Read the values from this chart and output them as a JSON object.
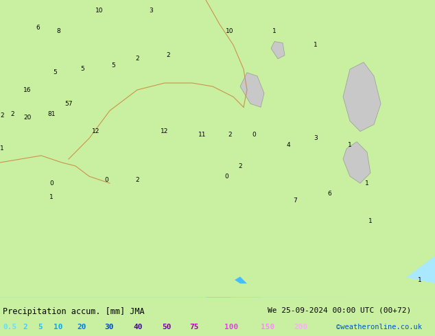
{
  "title_left": "Precipitation accum. [mm] JMA",
  "title_right": "We 25-09-2024 00:00 UTC (00+72)",
  "credit": "©weatheronline.co.uk",
  "legend_values": [
    "0.5",
    "2",
    "5",
    "10",
    "20",
    "30",
    "40",
    "50",
    "75",
    "100",
    "150",
    "200"
  ],
  "land_color": "#c8f0a0",
  "sea_color": "#d0ecff",
  "fill_colors": [
    "#aae8ff",
    "#77d4ff",
    "#44bcff",
    "#1199ee",
    "#0066dd",
    "#0044bb",
    "#002288",
    "#440088",
    "#7700aa",
    "#aa00bb",
    "#cc44cc"
  ],
  "legend_text_colors": [
    "#66ddff",
    "#44ccff",
    "#22bbff",
    "#00aaff",
    "#0077ee",
    "#0044cc",
    "#4400aa",
    "#770099",
    "#aa00aa",
    "#dd44dd",
    "#ff88ff",
    "#ffaaff"
  ],
  "contour_labels": [
    [
      18,
      265,
      "2"
    ],
    [
      3,
      263,
      "2"
    ],
    [
      3,
      215,
      "1"
    ],
    [
      40,
      260,
      "20"
    ],
    [
      40,
      300,
      "16"
    ],
    [
      75,
      265,
      "81"
    ],
    [
      100,
      280,
      "57"
    ],
    [
      140,
      240,
      "12"
    ],
    [
      155,
      170,
      "0"
    ],
    [
      200,
      170,
      "2"
    ],
    [
      240,
      240,
      "12"
    ],
    [
      295,
      235,
      "11"
    ],
    [
      80,
      325,
      "5"
    ],
    [
      120,
      330,
      "5"
    ],
    [
      165,
      335,
      "5"
    ],
    [
      200,
      345,
      "2"
    ],
    [
      245,
      350,
      "2"
    ],
    [
      75,
      165,
      "0"
    ],
    [
      75,
      145,
      "1"
    ],
    [
      330,
      175,
      "0"
    ],
    [
      350,
      190,
      "2"
    ],
    [
      335,
      235,
      "2"
    ],
    [
      370,
      235,
      "0"
    ],
    [
      420,
      220,
      "4"
    ],
    [
      460,
      230,
      "3"
    ],
    [
      510,
      220,
      "1"
    ],
    [
      430,
      140,
      "7"
    ],
    [
      480,
      150,
      "6"
    ],
    [
      535,
      165,
      "1"
    ],
    [
      540,
      110,
      "1"
    ],
    [
      55,
      390,
      "6"
    ],
    [
      85,
      385,
      "8"
    ],
    [
      145,
      415,
      "10"
    ],
    [
      220,
      415,
      "3"
    ],
    [
      335,
      385,
      "10"
    ],
    [
      400,
      385,
      "1"
    ],
    [
      460,
      365,
      "1"
    ],
    [
      612,
      25,
      "1"
    ]
  ],
  "fig_width": 6.34,
  "fig_height": 4.9,
  "dpi": 100
}
